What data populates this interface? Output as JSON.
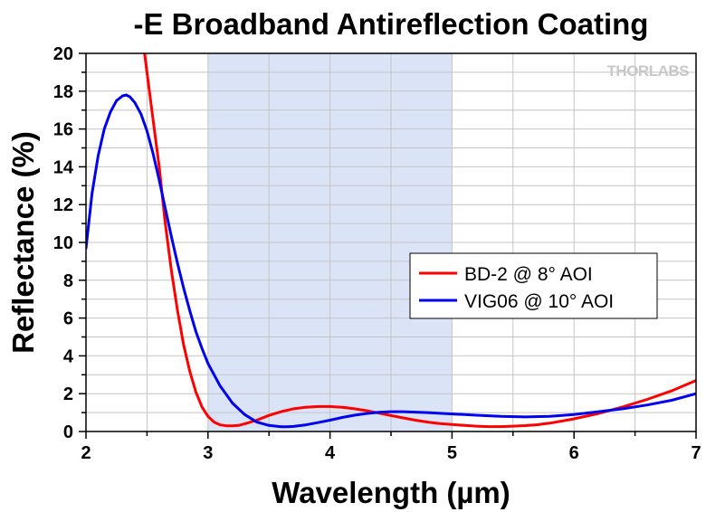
{
  "chart_data": {
    "type": "line",
    "title": "-E Broadband Antireflection Coating",
    "xlabel": "Wavelength (µm)",
    "ylabel": "Reflectance (%)",
    "xlim": [
      2,
      7
    ],
    "ylim": [
      0,
      20
    ],
    "xticks": [
      2,
      3,
      4,
      5,
      6,
      7
    ],
    "yticks": [
      0,
      2,
      4,
      6,
      8,
      10,
      12,
      14,
      16,
      18,
      20
    ],
    "x_minor_step": 0.5,
    "y_minor_step": 1,
    "grid": true,
    "legend_position": "center-right",
    "highlight_band": {
      "x_start": 3,
      "x_end": 5,
      "color": "#dbe4f7"
    },
    "logo": "THORLABS",
    "series": [
      {
        "name": "BD-2 @ 8° AOI",
        "color": "#ff0000",
        "x": [
          2.48,
          2.55,
          2.6,
          2.65,
          2.7,
          2.75,
          2.8,
          2.85,
          2.9,
          2.95,
          3.0,
          3.05,
          3.1,
          3.15,
          3.2,
          3.25,
          3.3,
          3.4,
          3.5,
          3.6,
          3.7,
          3.8,
          3.9,
          4.0,
          4.1,
          4.2,
          4.3,
          4.4,
          4.5,
          4.6,
          4.7,
          4.8,
          4.9,
          5.0,
          5.1,
          5.2,
          5.3,
          5.4,
          5.5,
          5.6,
          5.7,
          5.8,
          5.9,
          6.0,
          6.2,
          6.4,
          6.6,
          6.8,
          7.0
        ],
        "y": [
          20.0,
          16.5,
          14.0,
          11.0,
          8.5,
          6.4,
          4.6,
          3.2,
          2.1,
          1.3,
          0.8,
          0.5,
          0.35,
          0.3,
          0.3,
          0.32,
          0.4,
          0.6,
          0.85,
          1.05,
          1.2,
          1.28,
          1.32,
          1.32,
          1.28,
          1.2,
          1.1,
          0.97,
          0.84,
          0.72,
          0.6,
          0.5,
          0.42,
          0.37,
          0.32,
          0.28,
          0.26,
          0.26,
          0.28,
          0.31,
          0.36,
          0.44,
          0.55,
          0.67,
          0.95,
          1.3,
          1.7,
          2.15,
          2.7
        ]
      },
      {
        "name": "VIG06 @ 10° AOI",
        "color": "#0000ee",
        "x": [
          2.0,
          2.05,
          2.1,
          2.15,
          2.2,
          2.25,
          2.3,
          2.33,
          2.36,
          2.4,
          2.45,
          2.5,
          2.55,
          2.6,
          2.65,
          2.7,
          2.75,
          2.8,
          2.85,
          2.9,
          2.95,
          3.0,
          3.1,
          3.2,
          3.3,
          3.4,
          3.5,
          3.6,
          3.65,
          3.7,
          3.8,
          3.9,
          4.0,
          4.1,
          4.2,
          4.3,
          4.4,
          4.5,
          4.6,
          4.8,
          5.0,
          5.2,
          5.4,
          5.6,
          5.8,
          6.0,
          6.2,
          6.4,
          6.6,
          6.8,
          7.0
        ],
        "y": [
          9.7,
          12.6,
          14.6,
          16.0,
          16.9,
          17.5,
          17.75,
          17.8,
          17.7,
          17.4,
          16.8,
          15.9,
          14.7,
          13.3,
          11.8,
          10.3,
          8.9,
          7.6,
          6.4,
          5.3,
          4.4,
          3.6,
          2.4,
          1.5,
          0.9,
          0.5,
          0.32,
          0.25,
          0.25,
          0.27,
          0.35,
          0.47,
          0.6,
          0.74,
          0.86,
          0.95,
          1.02,
          1.05,
          1.05,
          1.0,
          0.93,
          0.86,
          0.8,
          0.77,
          0.8,
          0.9,
          1.05,
          1.2,
          1.4,
          1.65,
          2.0
        ]
      }
    ]
  }
}
